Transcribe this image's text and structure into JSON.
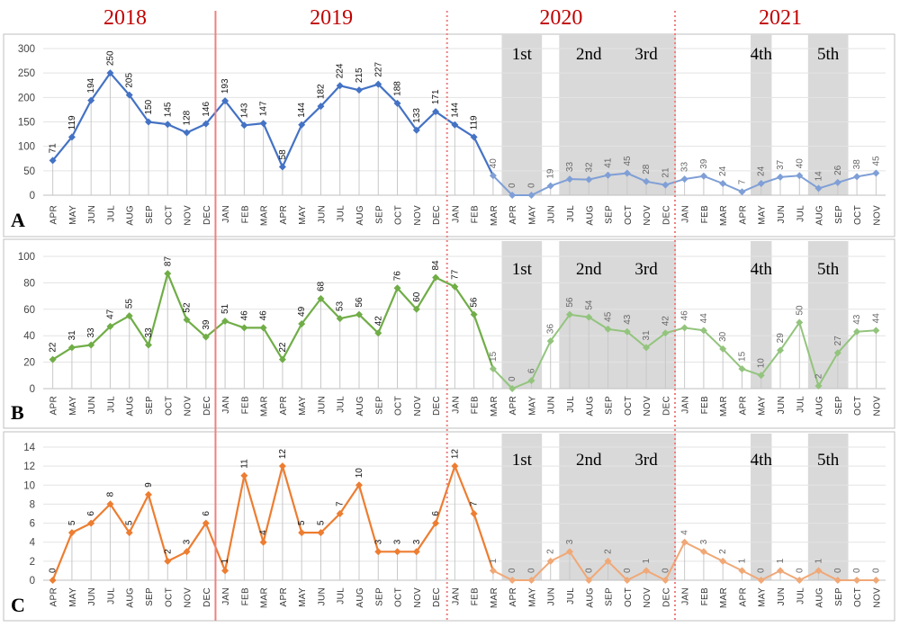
{
  "figure": {
    "year_labels": [
      "2018",
      "2019",
      "2020",
      "2021"
    ],
    "wave_labels": [
      "1st",
      "2nd",
      "3rd",
      "4th",
      "5th"
    ]
  },
  "chart_data": [
    {
      "type": "line",
      "panel": "A",
      "ylim": [
        0,
        300
      ],
      "yticks": [
        0,
        50,
        100,
        150,
        200,
        250,
        300
      ],
      "grid": true,
      "color": "#4472c4",
      "color_dim": "#7f9fd6",
      "categories": [
        "APR",
        "MAY",
        "JUN",
        "JUL",
        "AUG",
        "SEP",
        "OCT",
        "NOV",
        "DEC",
        "JAN",
        "FEB",
        "MAR",
        "APR",
        "MAY",
        "JUN",
        "JUL",
        "AUG",
        "SEP",
        "OCT",
        "NOV",
        "DEC",
        "JAN",
        "FEB",
        "MAR",
        "APR",
        "MAY",
        "JUN",
        "JUL",
        "AUG",
        "SEP",
        "OCT",
        "NOV",
        "DEC",
        "JAN",
        "FEB",
        "MAR",
        "APR",
        "MAY",
        "JUN",
        "JUL",
        "AUG",
        "SEP",
        "OCT",
        "NOV"
      ],
      "values": [
        71,
        119,
        194,
        250,
        205,
        150,
        145,
        128,
        146,
        193,
        143,
        147,
        58,
        144,
        182,
        224,
        215,
        227,
        188,
        133,
        171,
        144,
        119,
        40,
        0,
        0,
        19,
        33,
        32,
        41,
        45,
        28,
        21,
        33,
        39,
        24,
        7,
        24,
        37,
        40,
        14,
        26,
        38,
        45
      ]
    },
    {
      "type": "line",
      "panel": "B",
      "ylim": [
        0,
        100
      ],
      "yticks": [
        0,
        20,
        40,
        60,
        80,
        100
      ],
      "grid": true,
      "color": "#70ad47",
      "color_dim": "#93c47d",
      "categories": [
        "APR",
        "MAY",
        "JUN",
        "JUL",
        "AUG",
        "SEP",
        "OCT",
        "NOV",
        "DEC",
        "JAN",
        "FEB",
        "MAR",
        "APR",
        "MAY",
        "JUN",
        "JUL",
        "AUG",
        "SEP",
        "OCT",
        "NOV",
        "DEC",
        "JAN",
        "FEB",
        "MAR",
        "APR",
        "MAY",
        "JUN",
        "JUL",
        "AUG",
        "SEP",
        "OCT",
        "NOV",
        "DEC",
        "JAN",
        "FEB",
        "MAR",
        "APR",
        "MAY",
        "JUN",
        "JUL",
        "AUG",
        "SEP",
        "OCT",
        "NOV"
      ],
      "values": [
        22,
        31,
        33,
        47,
        55,
        33,
        87,
        52,
        39,
        51,
        46,
        46,
        22,
        49,
        68,
        53,
        56,
        42,
        76,
        60,
        84,
        77,
        56,
        15,
        0,
        6,
        36,
        56,
        54,
        45,
        43,
        31,
        42,
        46,
        44,
        30,
        15,
        10,
        29,
        50,
        2,
        27,
        43,
        44
      ]
    },
    {
      "type": "line",
      "panel": "C",
      "ylim": [
        0,
        14
      ],
      "yticks": [
        0,
        2,
        4,
        6,
        8,
        10,
        12,
        14
      ],
      "grid": true,
      "color": "#ed7d31",
      "color_dim": "#f0a877",
      "categories": [
        "APR",
        "MAY",
        "JUN",
        "JUL",
        "AUG",
        "SEP",
        "OCT",
        "NOV",
        "DEC",
        "JAN",
        "FEB",
        "MAR",
        "APR",
        "MAY",
        "JUN",
        "JUL",
        "AUG",
        "SEP",
        "OCT",
        "NOV",
        "DEC",
        "JAN",
        "FEB",
        "MAR",
        "APR",
        "MAY",
        "JUN",
        "JUL",
        "AUG",
        "SEP",
        "OCT",
        "NOV",
        "DEC",
        "JAN",
        "FEB",
        "MAR",
        "APR",
        "MAY",
        "JUN",
        "JUL",
        "AUG",
        "SEP",
        "OCT",
        "NOV"
      ],
      "values": [
        0,
        5,
        6,
        8,
        5,
        9,
        2,
        3,
        6,
        1,
        11,
        4,
        12,
        5,
        5,
        7,
        10,
        3,
        3,
        3,
        6,
        12,
        7,
        1,
        0,
        0,
        2,
        3,
        0,
        2,
        0,
        1,
        0,
        4,
        3,
        2,
        1,
        0,
        1,
        0,
        1,
        0,
        0,
        0
      ]
    }
  ]
}
